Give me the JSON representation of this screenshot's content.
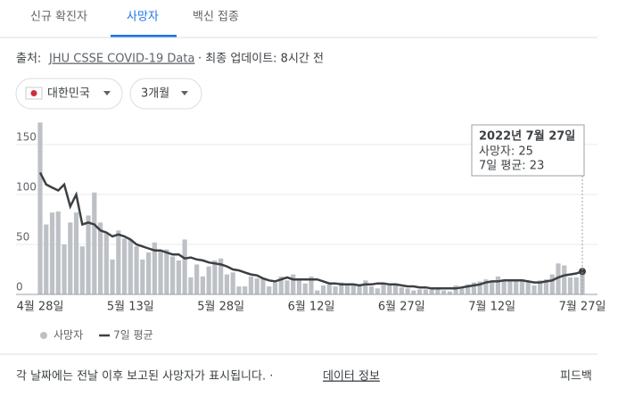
{
  "tabs": [
    "신규 확진자",
    "사망자",
    "백신 접종"
  ],
  "source": {
    "prefix": "출처:",
    "link": "JHU CSSE COVID-19 Data",
    "suffix": "· 최종 업데이트: 8시간 전"
  },
  "filters": [
    "대한민국",
    "3개월"
  ],
  "tooltip": {
    "date": "2022년 7월 27일",
    "deaths": "사망자: 25",
    "average": "7일 평균: 23"
  },
  "footer": {
    "note": "각 날짜에는 전날 이후 보고된 사망자가 표시됩니다. ·",
    "link": "데이터 정보",
    "feedback": "피드백"
  },
  "chart_data": {
    "type": "bar",
    "categories": [
      "4월 28일",
      null,
      null,
      null,
      null,
      null,
      null,
      null,
      null,
      null,
      null,
      null,
      null,
      null,
      null,
      "5월 13일",
      null,
      null,
      null,
      null,
      null,
      null,
      null,
      null,
      null,
      null,
      null,
      null,
      null,
      null,
      "5월 28일",
      null,
      null,
      null,
      null,
      null,
      null,
      null,
      null,
      null,
      null,
      null,
      null,
      null,
      null,
      "6월 12일",
      null,
      null,
      null,
      null,
      null,
      null,
      null,
      null,
      null,
      null,
      null,
      null,
      null,
      null,
      "6월 27일",
      null,
      null,
      null,
      null,
      null,
      null,
      null,
      null,
      null,
      null,
      null,
      null,
      null,
      null,
      "7월 12일",
      null,
      null,
      null,
      null,
      null,
      null,
      null,
      null,
      null,
      null,
      null,
      null,
      null,
      null,
      "7월 27일"
    ],
    "series": [
      {
        "name": "사망자",
        "type": "bar",
        "color": "#bdc1c6",
        "values": [
          172,
          70,
          82,
          83,
          50,
          72,
          82,
          48,
          79,
          102,
          72,
          61,
          35,
          64,
          56,
          55,
          48,
          35,
          42,
          52,
          44,
          45,
          38,
          34,
          55,
          17,
          30,
          18,
          28,
          34,
          36,
          20,
          22,
          8,
          8,
          18,
          16,
          16,
          8,
          12,
          18,
          14,
          20,
          16,
          11,
          18,
          4,
          9,
          10,
          8,
          12,
          11,
          9,
          10,
          14,
          8,
          6,
          10,
          9,
          11,
          7,
          6,
          4,
          5,
          5,
          6,
          6,
          4,
          3,
          9,
          7,
          10,
          12,
          13,
          15,
          13,
          18,
          14,
          15,
          15,
          15,
          13,
          9,
          14,
          15,
          20,
          31,
          29,
          17,
          17,
          25
        ]
      },
      {
        "name": "7일 평균",
        "type": "line",
        "color": "#3c4043",
        "values": [
          122,
          110,
          107,
          104,
          110,
          88,
          100,
          70,
          72,
          70,
          64,
          62,
          58,
          60,
          58,
          55,
          50,
          48,
          46,
          44,
          44,
          42,
          40,
          40,
          36,
          37,
          35,
          34,
          32,
          31,
          30,
          28,
          25,
          24,
          22,
          20,
          19,
          16,
          14,
          13,
          15,
          17,
          15,
          15,
          15,
          15,
          15,
          13,
          11,
          11,
          10,
          10,
          10,
          9,
          10,
          10,
          11,
          11,
          10,
          10,
          9,
          8,
          8,
          7,
          7,
          6,
          6,
          6,
          6,
          6,
          7,
          8,
          9,
          10,
          12,
          13,
          13,
          14,
          14,
          14,
          14,
          13,
          12,
          12,
          13,
          14,
          17,
          19,
          20,
          21,
          23
        ]
      }
    ],
    "ylim": [
      0,
      175
    ],
    "yticks": [
      0,
      50,
      100,
      150
    ],
    "grid": true
  }
}
